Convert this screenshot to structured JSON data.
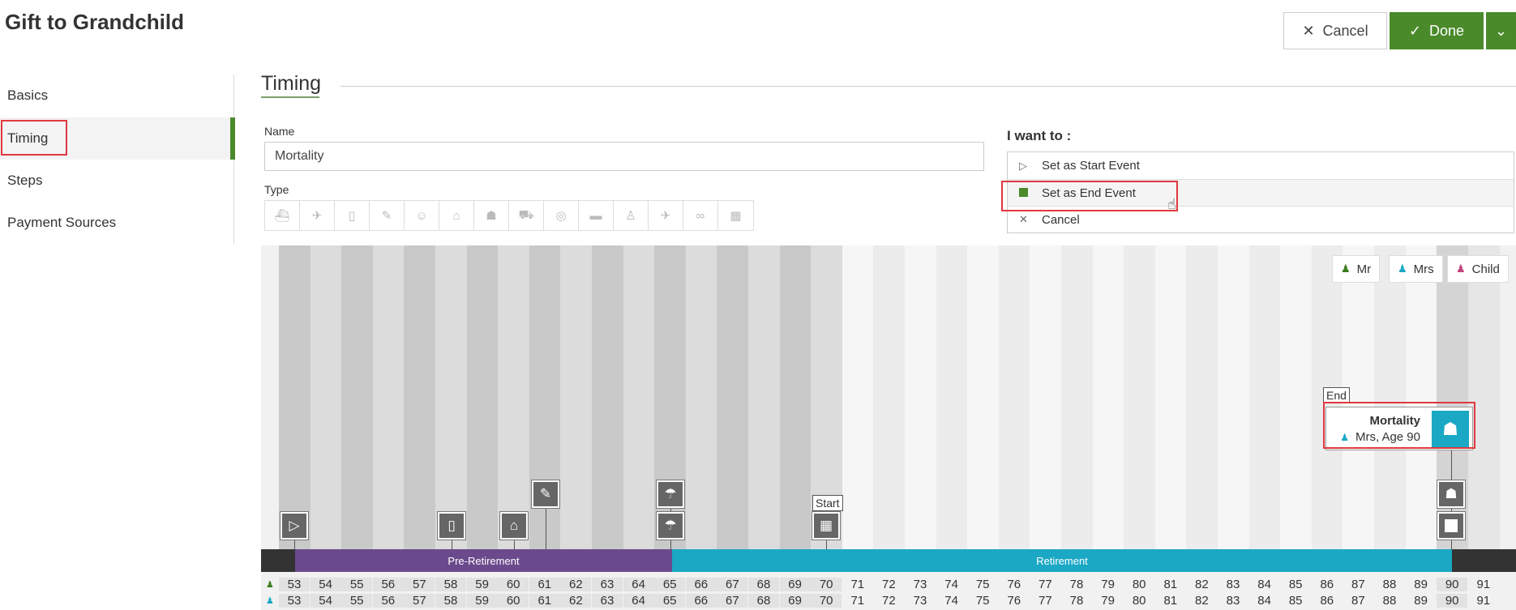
{
  "header": {
    "title": "Gift to Grandchild",
    "cancel_label": "Cancel",
    "done_label": "Done"
  },
  "sidebar": {
    "items": [
      {
        "label": "Basics"
      },
      {
        "label": "Timing"
      },
      {
        "label": "Steps"
      },
      {
        "label": "Payment Sources"
      }
    ]
  },
  "section": {
    "title": "Timing"
  },
  "form": {
    "name_label": "Name",
    "name_value": "Mortality",
    "type_label": "Type",
    "type_icons": [
      "ship-icon",
      "rocket-icon",
      "book-icon",
      "diploma-icon",
      "baby-icon",
      "house-icon",
      "family-icon",
      "car-icon",
      "coins-icon",
      "paint-roller-icon",
      "person-icon",
      "plane-icon",
      "rings-icon",
      "calendar-icon"
    ]
  },
  "want": {
    "title": "I want to :",
    "items": [
      {
        "label": "Set as Start Event"
      },
      {
        "label": "Set as End Event"
      },
      {
        "label": "Cancel"
      }
    ]
  },
  "legend": [
    {
      "label": "Mr",
      "color": "#3a7d1e"
    },
    {
      "label": "Mrs",
      "color": "#1aa8c4"
    },
    {
      "label": "Child",
      "color": "#c2417a"
    }
  ],
  "timeline": {
    "start_tag": "Start",
    "end_tag": "End",
    "phases": [
      {
        "label": "Pre-Retirement",
        "color": "#6a4a8c"
      },
      {
        "label": "Retirement",
        "color": "#1aa8c4"
      }
    ],
    "ages_mr": [
      "53",
      "54",
      "55",
      "56",
      "57",
      "58",
      "59",
      "60",
      "61",
      "62",
      "63",
      "64",
      "65",
      "66",
      "67",
      "68",
      "69",
      "70",
      "71",
      "72",
      "73",
      "74",
      "75",
      "76",
      "77",
      "78",
      "79",
      "80",
      "81",
      "82",
      "83",
      "84",
      "85",
      "86",
      "87",
      "88",
      "89",
      "90",
      "91"
    ],
    "ages_mrs": [
      "53",
      "54",
      "55",
      "56",
      "57",
      "58",
      "59",
      "60",
      "61",
      "62",
      "63",
      "64",
      "65",
      "66",
      "67",
      "68",
      "69",
      "70",
      "71",
      "72",
      "73",
      "74",
      "75",
      "76",
      "77",
      "78",
      "79",
      "80",
      "81",
      "82",
      "83",
      "84",
      "85",
      "86",
      "87",
      "88",
      "89",
      "90",
      "91"
    ]
  },
  "event_card": {
    "title": "Mortality",
    "subtitle": "Mrs, Age 90"
  }
}
